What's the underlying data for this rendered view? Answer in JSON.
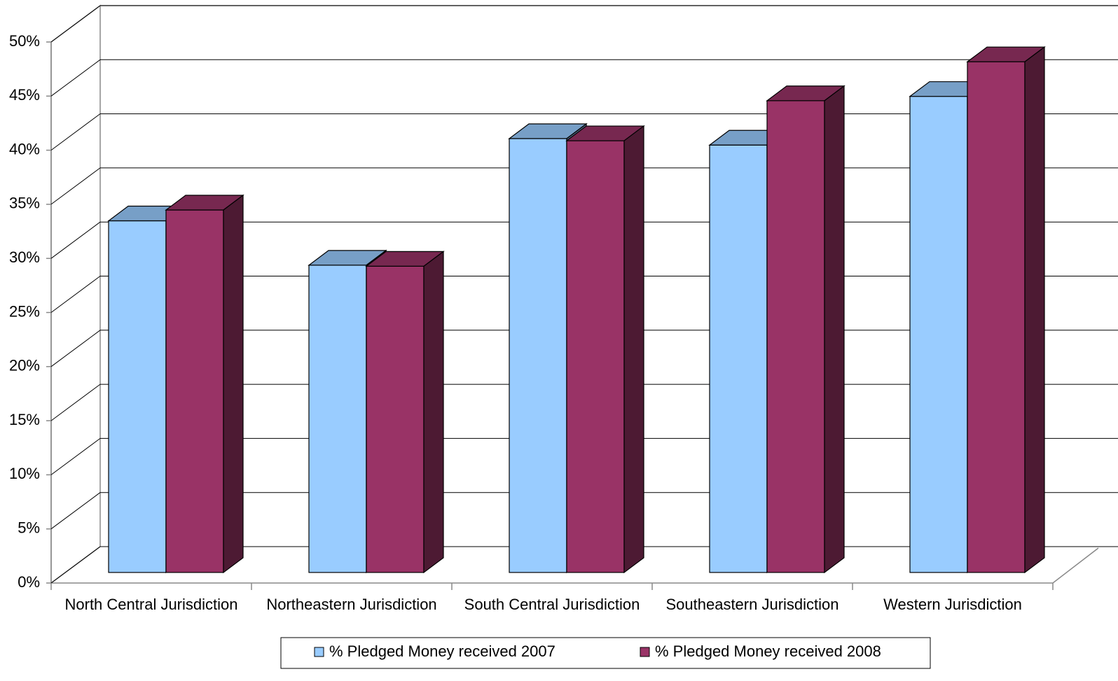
{
  "chart_data": {
    "type": "bar3d",
    "categories": [
      "North Central Jurisdiction",
      "Northeastern Jurisdiction",
      "South Central Jurisdiction",
      "Southeastern Jurisdiction",
      "Western Jurisdiction"
    ],
    "series": [
      {
        "name": "% Pledged Money received 2007",
        "color": "#99ccff",
        "values": [
          32.5,
          28.4,
          40.1,
          39.5,
          44.0
        ]
      },
      {
        "name": "% Pledged Money received 2008",
        "color": "#993366",
        "values": [
          33.5,
          28.3,
          39.9,
          43.6,
          47.2
        ]
      }
    ],
    "ylim": [
      0,
      50
    ],
    "yticks": [
      {
        "value": 0,
        "label": "0%"
      },
      {
        "value": 5,
        "label": "5%"
      },
      {
        "value": 10,
        "label": "10%"
      },
      {
        "value": 15,
        "label": "15%"
      },
      {
        "value": 20,
        "label": "20%"
      },
      {
        "value": 25,
        "label": "25%"
      },
      {
        "value": 30,
        "label": "30%"
      },
      {
        "value": 35,
        "label": "35%"
      },
      {
        "value": 40,
        "label": "40%"
      },
      {
        "value": 45,
        "label": "45%"
      },
      {
        "value": 50,
        "label": "50%"
      }
    ],
    "grid": true
  }
}
